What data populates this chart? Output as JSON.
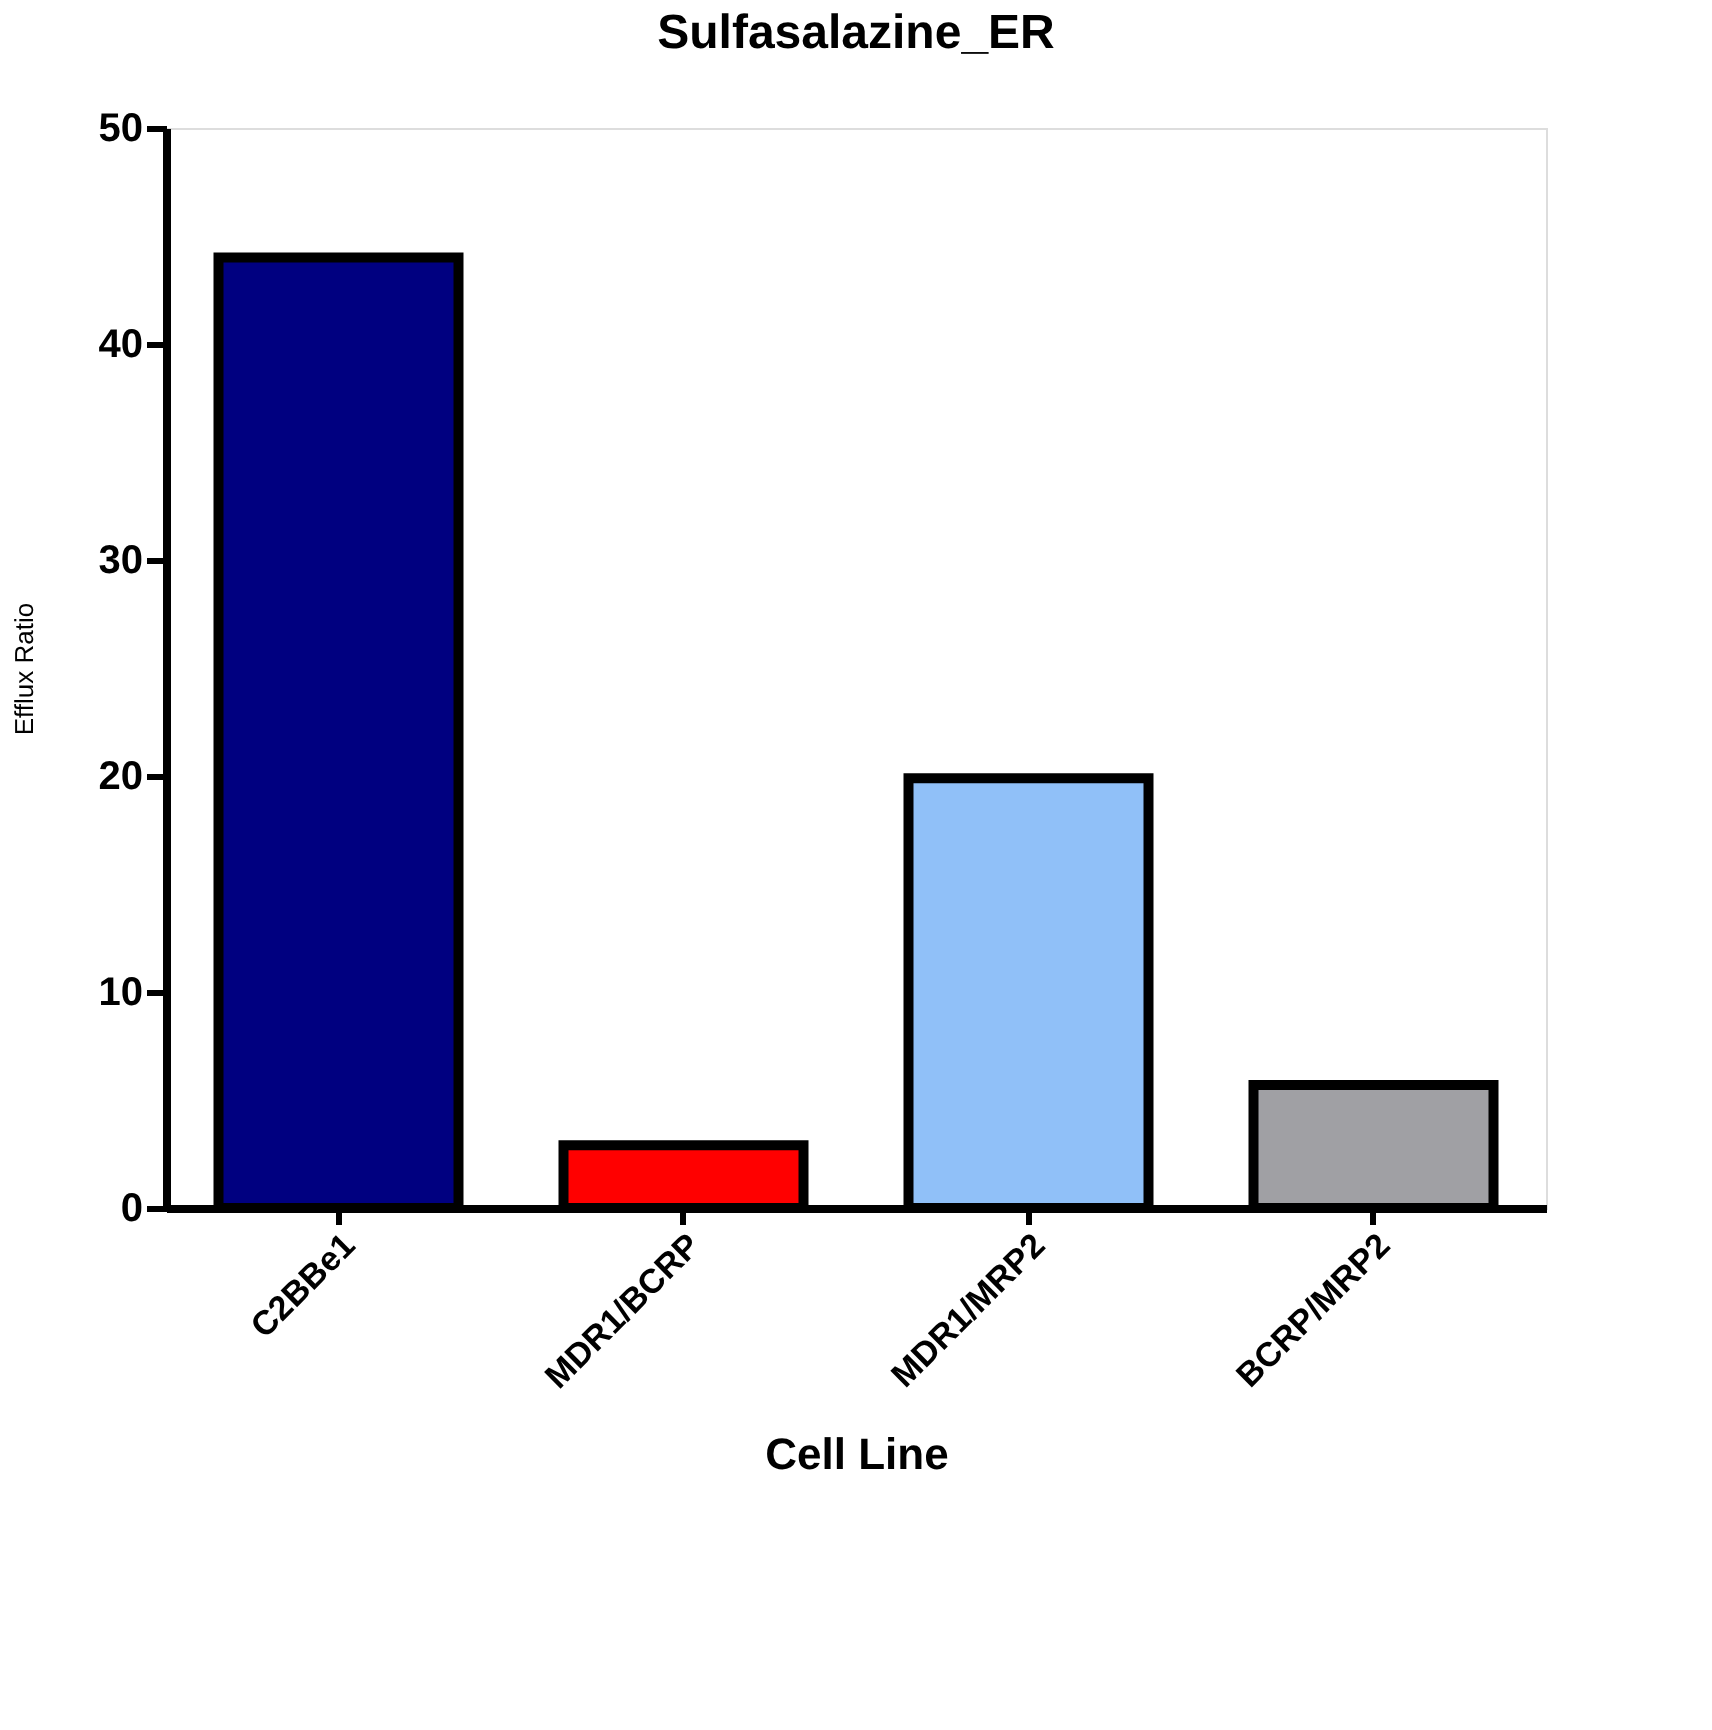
{
  "chart_data": {
    "type": "bar",
    "title": "Sulfasalazine_ER",
    "xlabel": "Cell Line",
    "ylabel": "Efflux Ratio",
    "categories": [
      "C2BBe1",
      "MDR1/BCRP",
      "MDR1/MRP2",
      "BCRP/MRP2"
    ],
    "values": [
      44,
      2.9,
      19.9,
      5.7
    ],
    "colors": [
      "#000080",
      "#ff0000",
      "#90c0f8",
      "#a0a0a4"
    ],
    "ylim": [
      0,
      50
    ],
    "yticks": [
      0,
      10,
      20,
      30,
      40,
      50
    ],
    "grid": false
  }
}
